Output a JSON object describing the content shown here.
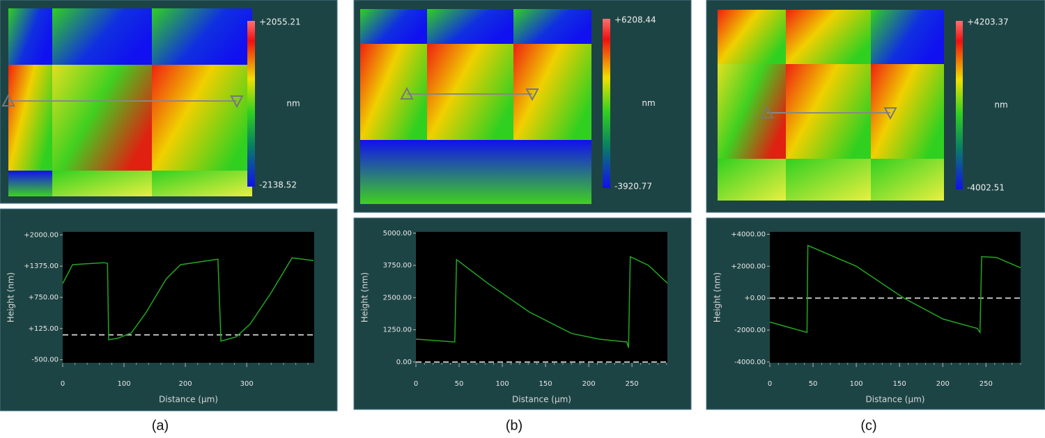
{
  "panels": [
    {
      "label": "(a)",
      "colorbar": {
        "max": "+2055.21",
        "unit": "nm",
        "min": "-2138.52"
      }
    },
    {
      "label": "(b)",
      "colorbar": {
        "max": "+6208.44",
        "unit": "nm",
        "min": "-3920.77"
      }
    },
    {
      "label": "(c)",
      "colorbar": {
        "max": "+4203.37",
        "unit": "nm",
        "min": "-4002.51"
      }
    }
  ],
  "chart_data": [
    {
      "type": "line",
      "x_label": "Distance (µm)",
      "y_label": "Height (nm)",
      "color": "#22a822",
      "x": [
        0,
        16,
        67,
        73,
        75,
        90,
        112,
        135,
        169,
        192,
        253,
        258,
        283,
        306,
        340,
        374,
        409
      ],
      "values": [
        1027,
        1403,
        1444,
        1430,
        -99,
        -70,
        40,
        430,
        1124,
        1403,
        1514,
        -127,
        -40,
        222,
        847,
        1541,
        1486
      ],
      "xlim": [
        0,
        410
      ],
      "ylim": [
        -560,
        2060
      ],
      "xticks": [
        0,
        100,
        200,
        300
      ],
      "yticks": [
        {
          "value": -500,
          "label": "-500.00"
        },
        {
          "value": 125,
          "label": "+125.00"
        },
        {
          "value": 750,
          "label": "+750.00"
        },
        {
          "value": 1375,
          "label": "+1375.00"
        },
        {
          "value": 2000,
          "label": "+2000.00"
        }
      ],
      "reference_line": 0
    },
    {
      "type": "line",
      "x_label": "Distance (µm)",
      "y_label": "Height (nm)",
      "color": "#22a822",
      "x": [
        0,
        45,
        47,
        83,
        131,
        180,
        212,
        244,
        246,
        248,
        269,
        291
      ],
      "values": [
        889,
        778,
        3975,
        3058,
        1945,
        1111,
        889,
        778,
        556,
        4086,
        3753,
        3058
      ],
      "xlim": [
        0,
        291
      ],
      "ylim": [
        -30,
        5050
      ],
      "xticks": [
        0,
        50,
        100,
        150,
        200,
        250
      ],
      "yticks": [
        {
          "value": 0,
          "label": "0.00"
        },
        {
          "value": 1250,
          "label": "1250.00"
        },
        {
          "value": 2500,
          "label": "2500.00"
        },
        {
          "value": 3750,
          "label": "3750.00"
        },
        {
          "value": 5000,
          "label": "5000.00"
        }
      ],
      "reference_line": 0
    },
    {
      "type": "line",
      "x_label": "Distance (µm)",
      "y_label": "Height (nm)",
      "color": "#22a822",
      "x": [
        0,
        20,
        43,
        44,
        100,
        155,
        200,
        240,
        243,
        245,
        262,
        290
      ],
      "values": [
        -1500,
        -1800,
        -2150,
        3300,
        2000,
        0,
        -1300,
        -1900,
        -2150,
        2600,
        2550,
        1900
      ],
      "xlim": [
        0,
        290
      ],
      "ylim": [
        -4050,
        4150
      ],
      "xticks": [
        0,
        50,
        100,
        150,
        200,
        250
      ],
      "yticks": [
        {
          "value": -4000,
          "label": "-4000.00"
        },
        {
          "value": -2000,
          "label": "-2000.00"
        },
        {
          "value": 0,
          "label": "+0.00"
        },
        {
          "value": 2000,
          "label": "+2000.00"
        },
        {
          "value": 4000,
          "label": "+4000.00"
        }
      ],
      "reference_line": 0
    }
  ]
}
